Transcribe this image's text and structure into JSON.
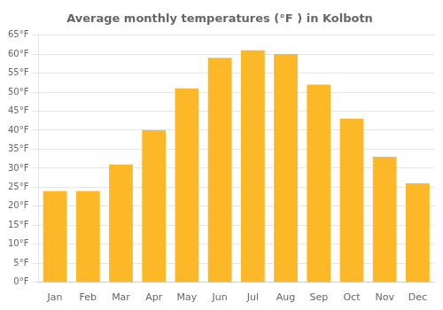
{
  "chart_data": {
    "type": "bar",
    "title": "Average monthly temperatures (°F ) in Kolbotn",
    "categories": [
      "Jan",
      "Feb",
      "Mar",
      "Apr",
      "May",
      "Jun",
      "Jul",
      "Aug",
      "Sep",
      "Oct",
      "Nov",
      "Dec"
    ],
    "values": [
      24,
      24,
      31,
      40,
      51,
      59,
      61,
      60,
      52,
      43,
      33,
      26
    ],
    "color": "#FDB827",
    "ylim": [
      0,
      65
    ],
    "yticks": [
      {
        "value": 0,
        "label": "0°F"
      },
      {
        "value": 5,
        "label": "5°F"
      },
      {
        "value": 10,
        "label": "10°F"
      },
      {
        "value": 15,
        "label": "15°F"
      },
      {
        "value": 20,
        "label": "20°F"
      },
      {
        "value": 25,
        "label": "25°F"
      },
      {
        "value": 30,
        "label": "30°F"
      },
      {
        "value": 35,
        "label": "35°F"
      },
      {
        "value": 40,
        "label": "40°F"
      },
      {
        "value": 45,
        "label": "45°F"
      },
      {
        "value": 50,
        "label": "50°F"
      },
      {
        "value": 55,
        "label": "55°F"
      },
      {
        "value": 60,
        "label": "60°F"
      },
      {
        "value": 65,
        "label": "65°F"
      }
    ],
    "grid": true
  }
}
